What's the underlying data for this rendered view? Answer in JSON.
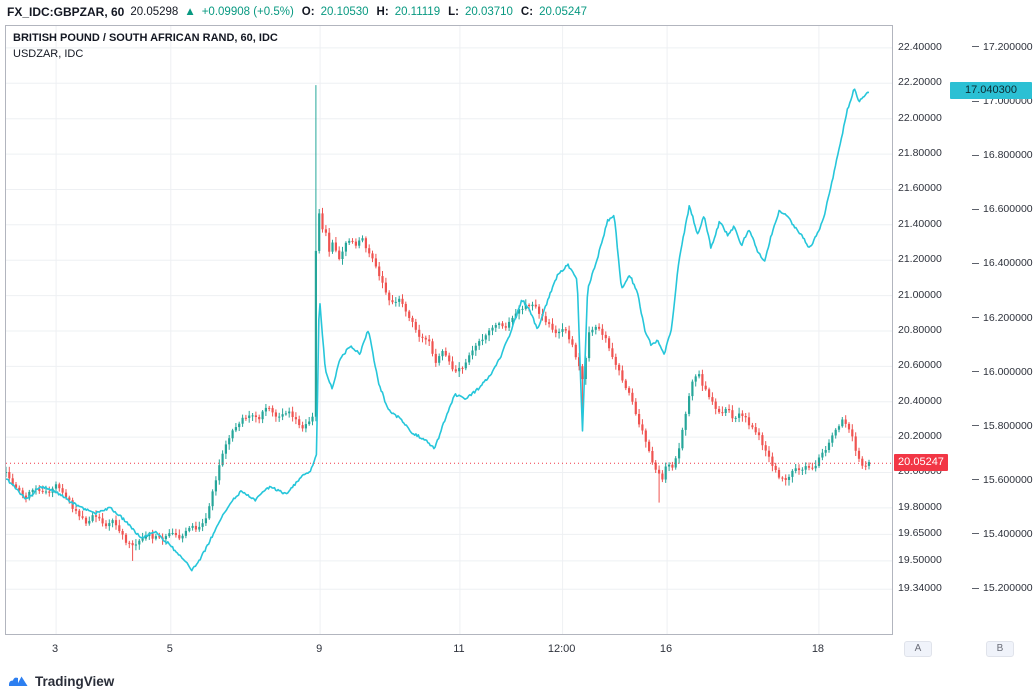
{
  "topbar": {
    "symbol": "FX_IDC:GBPZAR, 60",
    "last_price": "20.05298",
    "change_arrow": "▲",
    "change": "+0.09908 (+0.5%)",
    "ohlc": [
      {
        "label": "O:",
        "value": "20.10530"
      },
      {
        "label": "H:",
        "value": "20.11119"
      },
      {
        "label": "L:",
        "value": "20.03710"
      },
      {
        "label": "C:",
        "value": "20.05247"
      }
    ]
  },
  "legend": {
    "title": "BRITISH POUND / SOUTH AFRICAN RAND, 60, IDC",
    "subtitle": "USDZAR, IDC"
  },
  "badges": {
    "gbpzar": "20.05247",
    "usdzar": "17.040300"
  },
  "axis_buttons": [
    {
      "label": "A"
    },
    {
      "label": "B"
    }
  ],
  "footer": {
    "brand": "TradingView"
  },
  "colors": {
    "up": "#26a69a",
    "down": "#ef5350",
    "usdzar_line": "#26c6da",
    "last_price_line": "#f23645",
    "badge_red_bg": "#f23645",
    "badge_red_text": "#ffffff",
    "badge_cyan_bg": "#2bc0d4",
    "badge_cyan_text": "#0c2a31",
    "grid": "#eef0f3",
    "change_green": "#089981",
    "logo_blue": "#2d7ff0"
  },
  "chart_data": {
    "type": "candlestick",
    "title": "BRITISH POUND / SOUTH AFRICAN RAND, 60, IDC",
    "subtitle_overlay": "USDZAR, IDC",
    "interval": "60",
    "x_axis": {
      "labels": [
        "3",
        "5",
        "9",
        "11",
        "12:00",
        "16",
        "18"
      ],
      "positions": [
        0.058,
        0.191,
        0.364,
        0.526,
        0.645,
        0.766,
        0.942
      ]
    },
    "y_axis_a": {
      "range": [
        19.087,
        22.524
      ],
      "tick_values": [
        22.4,
        22.2,
        22.0,
        21.8,
        21.6,
        21.4,
        21.2,
        21.0,
        20.8,
        20.6,
        20.4,
        20.2,
        20.0,
        19.8,
        19.65,
        19.5,
        19.34
      ],
      "tick_labels": [
        "22.40000",
        "22.20000",
        "22.00000",
        "21.80000",
        "21.60000",
        "21.40000",
        "21.20000",
        "21.00000",
        "20.80000",
        "20.60000",
        "20.40000",
        "20.20000",
        "20.00000",
        "19.80000",
        "19.65000",
        "19.50000",
        "19.34000"
      ]
    },
    "y_axis_b": {
      "range": [
        15.034,
        17.281
      ],
      "tick_values": [
        17.2,
        17.0,
        16.8,
        16.6,
        16.4,
        16.2,
        16.0,
        15.8,
        15.6,
        15.4,
        15.2
      ],
      "tick_labels": [
        "17.200000",
        "17.000000",
        "16.800000",
        "16.600000",
        "16.400000",
        "16.200000",
        "16.000000",
        "15.800000",
        "15.600000",
        "15.400000",
        "15.200000"
      ]
    },
    "series": [
      {
        "name": "GBPZAR",
        "type": "candlestick",
        "scale": "a",
        "last": 20.05247,
        "bar_count": 260,
        "close_path": [
          [
            0.0,
            20.01
          ],
          [
            0.012,
            19.9
          ],
          [
            0.023,
            19.86
          ],
          [
            0.035,
            19.92
          ],
          [
            0.046,
            19.88
          ],
          [
            0.058,
            19.93
          ],
          [
            0.066,
            19.89
          ],
          [
            0.075,
            19.82
          ],
          [
            0.084,
            19.76
          ],
          [
            0.092,
            19.72
          ],
          [
            0.104,
            19.76
          ],
          [
            0.116,
            19.69
          ],
          [
            0.124,
            19.73
          ],
          [
            0.133,
            19.65
          ],
          [
            0.145,
            19.58
          ],
          [
            0.154,
            19.61
          ],
          [
            0.165,
            19.65
          ],
          [
            0.177,
            19.62
          ],
          [
            0.191,
            19.67
          ],
          [
            0.202,
            19.63
          ],
          [
            0.214,
            19.69
          ],
          [
            0.225,
            19.68
          ],
          [
            0.235,
            19.79
          ],
          [
            0.243,
            19.96
          ],
          [
            0.251,
            20.1
          ],
          [
            0.258,
            20.2
          ],
          [
            0.266,
            20.25
          ],
          [
            0.274,
            20.3
          ],
          [
            0.283,
            20.34
          ],
          [
            0.293,
            20.3
          ],
          [
            0.301,
            20.37
          ],
          [
            0.309,
            20.34
          ],
          [
            0.318,
            20.31
          ],
          [
            0.327,
            20.34
          ],
          [
            0.335,
            20.3
          ],
          [
            0.343,
            20.25
          ],
          [
            0.35,
            20.27
          ],
          [
            0.356,
            20.33
          ],
          [
            0.361,
            21.82
          ],
          [
            0.364,
            21.26
          ],
          [
            0.369,
            21.45
          ],
          [
            0.373,
            21.23
          ],
          [
            0.379,
            21.31
          ],
          [
            0.387,
            21.2
          ],
          [
            0.395,
            21.32
          ],
          [
            0.405,
            21.28
          ],
          [
            0.413,
            21.32
          ],
          [
            0.422,
            21.23
          ],
          [
            0.43,
            21.14
          ],
          [
            0.439,
            21.03
          ],
          [
            0.447,
            20.95
          ],
          [
            0.457,
            20.99
          ],
          [
            0.466,
            20.89
          ],
          [
            0.474,
            20.81
          ],
          [
            0.482,
            20.75
          ],
          [
            0.489,
            20.76
          ],
          [
            0.497,
            20.61
          ],
          [
            0.505,
            20.69
          ],
          [
            0.512,
            20.63
          ],
          [
            0.52,
            20.57
          ],
          [
            0.528,
            20.59
          ],
          [
            0.535,
            20.65
          ],
          [
            0.543,
            20.72
          ],
          [
            0.552,
            20.76
          ],
          [
            0.561,
            20.81
          ],
          [
            0.569,
            20.85
          ],
          [
            0.578,
            20.82
          ],
          [
            0.586,
            20.87
          ],
          [
            0.595,
            20.92
          ],
          [
            0.605,
            20.95
          ],
          [
            0.613,
            20.93
          ],
          [
            0.621,
            20.89
          ],
          [
            0.63,
            20.83
          ],
          [
            0.639,
            20.78
          ],
          [
            0.647,
            20.81
          ],
          [
            0.656,
            20.72
          ],
          [
            0.662,
            20.64
          ],
          [
            0.668,
            20.52
          ],
          [
            0.676,
            20.81
          ],
          [
            0.684,
            20.83
          ],
          [
            0.694,
            20.76
          ],
          [
            0.702,
            20.66
          ],
          [
            0.709,
            20.58
          ],
          [
            0.717,
            20.5
          ],
          [
            0.725,
            20.41
          ],
          [
            0.732,
            20.3
          ],
          [
            0.74,
            20.19
          ],
          [
            0.746,
            20.1
          ],
          [
            0.753,
            20.02
          ],
          [
            0.76,
            19.96
          ],
          [
            0.766,
            20.06
          ],
          [
            0.772,
            20.02
          ],
          [
            0.778,
            20.1
          ],
          [
            0.784,
            20.24
          ],
          [
            0.79,
            20.41
          ],
          [
            0.795,
            20.52
          ],
          [
            0.801,
            20.57
          ],
          [
            0.807,
            20.5
          ],
          [
            0.813,
            20.44
          ],
          [
            0.82,
            20.38
          ],
          [
            0.827,
            20.34
          ],
          [
            0.835,
            20.36
          ],
          [
            0.843,
            20.31
          ],
          [
            0.85,
            20.34
          ],
          [
            0.858,
            20.3
          ],
          [
            0.865,
            20.25
          ],
          [
            0.873,
            20.2
          ],
          [
            0.88,
            20.13
          ],
          [
            0.887,
            20.06
          ],
          [
            0.894,
            19.99
          ],
          [
            0.901,
            19.95
          ],
          [
            0.908,
            19.99
          ],
          [
            0.914,
            20.03
          ],
          [
            0.921,
            20.01
          ],
          [
            0.928,
            20.05
          ],
          [
            0.935,
            20.02
          ],
          [
            0.942,
            20.08
          ],
          [
            0.949,
            20.13
          ],
          [
            0.956,
            20.2
          ],
          [
            0.963,
            20.25
          ],
          [
            0.969,
            20.3
          ],
          [
            0.975,
            20.25
          ],
          [
            0.98,
            20.21
          ],
          [
            0.986,
            20.1
          ],
          [
            0.991,
            20.03
          ],
          [
            1.0,
            20.052
          ]
        ],
        "wick_events": [
          {
            "f": 0.361,
            "price": 22.19
          },
          {
            "f": 0.145,
            "price": 19.5
          },
          {
            "f": 0.668,
            "price": 20.3
          },
          {
            "f": 0.758,
            "price": 19.83
          }
        ]
      },
      {
        "name": "USDZAR",
        "type": "line",
        "scale": "b",
        "last": 17.0403,
        "points": [
          [
            0.0,
            15.61
          ],
          [
            0.023,
            15.53
          ],
          [
            0.04,
            15.58
          ],
          [
            0.058,
            15.56
          ],
          [
            0.081,
            15.51
          ],
          [
            0.104,
            15.48
          ],
          [
            0.121,
            15.5
          ],
          [
            0.139,
            15.45
          ],
          [
            0.156,
            15.39
          ],
          [
            0.173,
            15.41
          ],
          [
            0.191,
            15.36
          ],
          [
            0.205,
            15.31
          ],
          [
            0.216,
            15.27
          ],
          [
            0.225,
            15.31
          ],
          [
            0.243,
            15.42
          ],
          [
            0.258,
            15.51
          ],
          [
            0.272,
            15.56
          ],
          [
            0.289,
            15.53
          ],
          [
            0.306,
            15.58
          ],
          [
            0.324,
            15.55
          ],
          [
            0.341,
            15.61
          ],
          [
            0.353,
            15.64
          ],
          [
            0.36,
            15.7
          ],
          [
            0.363,
            16.29
          ],
          [
            0.37,
            16.01
          ],
          [
            0.378,
            15.94
          ],
          [
            0.387,
            16.05
          ],
          [
            0.399,
            16.1
          ],
          [
            0.41,
            16.07
          ],
          [
            0.42,
            16.16
          ],
          [
            0.431,
            15.97
          ],
          [
            0.443,
            15.86
          ],
          [
            0.457,
            15.83
          ],
          [
            0.47,
            15.78
          ],
          [
            0.486,
            15.75
          ],
          [
            0.497,
            15.72
          ],
          [
            0.509,
            15.83
          ],
          [
            0.52,
            15.92
          ],
          [
            0.532,
            15.9
          ],
          [
            0.547,
            15.94
          ],
          [
            0.561,
            15.99
          ],
          [
            0.572,
            16.05
          ],
          [
            0.586,
            16.16
          ],
          [
            0.598,
            16.27
          ],
          [
            0.607,
            16.23
          ],
          [
            0.616,
            16.16
          ],
          [
            0.628,
            16.27
          ],
          [
            0.639,
            16.36
          ],
          [
            0.651,
            16.4
          ],
          [
            0.662,
            16.34
          ],
          [
            0.668,
            15.78
          ],
          [
            0.674,
            16.31
          ],
          [
            0.686,
            16.43
          ],
          [
            0.697,
            16.56
          ],
          [
            0.705,
            16.58
          ],
          [
            0.713,
            16.31
          ],
          [
            0.723,
            16.36
          ],
          [
            0.732,
            16.29
          ],
          [
            0.74,
            16.16
          ],
          [
            0.748,
            16.1
          ],
          [
            0.755,
            16.12
          ],
          [
            0.763,
            16.07
          ],
          [
            0.771,
            16.16
          ],
          [
            0.78,
            16.42
          ],
          [
            0.792,
            16.62
          ],
          [
            0.801,
            16.51
          ],
          [
            0.809,
            16.58
          ],
          [
            0.817,
            16.46
          ],
          [
            0.827,
            16.56
          ],
          [
            0.836,
            16.51
          ],
          [
            0.844,
            16.54
          ],
          [
            0.852,
            16.47
          ],
          [
            0.861,
            16.53
          ],
          [
            0.871,
            16.45
          ],
          [
            0.879,
            16.41
          ],
          [
            0.887,
            16.51
          ],
          [
            0.896,
            16.6
          ],
          [
            0.905,
            16.58
          ],
          [
            0.913,
            16.54
          ],
          [
            0.921,
            16.51
          ],
          [
            0.931,
            16.46
          ],
          [
            0.94,
            16.51
          ],
          [
            0.948,
            16.58
          ],
          [
            0.956,
            16.69
          ],
          [
            0.965,
            16.82
          ],
          [
            0.975,
            16.97
          ],
          [
            0.983,
            17.05
          ],
          [
            0.988,
            17.0
          ],
          [
            0.994,
            17.02
          ],
          [
            1.0,
            17.04
          ]
        ]
      }
    ]
  }
}
